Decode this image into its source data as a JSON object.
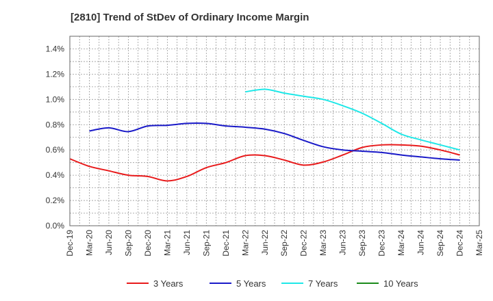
{
  "chart_data": {
    "type": "line",
    "title": "[2810]  Trend of StDev of Ordinary Income Margin",
    "xlabel": "",
    "ylabel": "",
    "x_ticks": [
      "Dec-19",
      "Mar-20",
      "Jun-20",
      "Sep-20",
      "Dec-20",
      "Mar-21",
      "Jun-21",
      "Sep-21",
      "Dec-21",
      "Mar-22",
      "Jun-22",
      "Sep-22",
      "Dec-22",
      "Mar-23",
      "Jun-23",
      "Sep-23",
      "Dec-23",
      "Mar-24",
      "Jun-24",
      "Sep-24",
      "Dec-24",
      "Mar-25"
    ],
    "y_ticks": [
      "0.0%",
      "0.2%",
      "0.4%",
      "0.6%",
      "0.8%",
      "1.0%",
      "1.2%",
      "1.4%"
    ],
    "ylim": [
      0,
      1.5
    ],
    "grid": true,
    "legend_position": "bottom",
    "series": [
      {
        "name": "3 Years",
        "color": "#e8191a",
        "values": [
          0.53,
          0.47,
          0.435,
          0.4,
          0.39,
          0.355,
          0.39,
          0.46,
          0.5,
          0.555,
          0.555,
          0.52,
          0.48,
          0.505,
          0.56,
          0.62,
          0.64,
          0.64,
          0.63,
          0.6,
          0.56,
          null
        ]
      },
      {
        "name": "5 Years",
        "color": "#1919c8",
        "values": [
          null,
          0.75,
          0.775,
          0.745,
          0.79,
          0.795,
          0.81,
          0.81,
          0.79,
          0.78,
          0.765,
          0.73,
          0.675,
          0.625,
          0.6,
          0.59,
          0.58,
          0.56,
          0.545,
          0.53,
          0.52,
          null
        ]
      },
      {
        "name": "7 Years",
        "color": "#1ee8e8",
        "values": [
          null,
          null,
          null,
          null,
          null,
          null,
          null,
          null,
          null,
          1.06,
          1.08,
          1.05,
          1.025,
          1.0,
          0.95,
          0.89,
          0.81,
          0.725,
          0.68,
          0.64,
          0.6,
          null
        ]
      },
      {
        "name": "10 Years",
        "color": "#1a8a1a",
        "values": [
          null,
          null,
          null,
          null,
          null,
          null,
          null,
          null,
          null,
          null,
          null,
          null,
          null,
          null,
          null,
          null,
          null,
          null,
          null,
          null,
          null,
          null
        ]
      }
    ]
  }
}
